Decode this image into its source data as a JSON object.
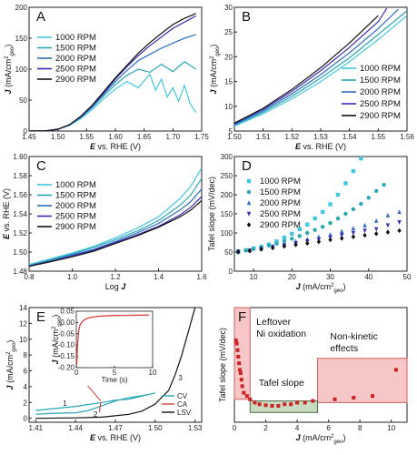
{
  "series_colors": [
    "#43c7e0",
    "#2aa6b4",
    "#2f6dc0",
    "#3b2fb3",
    "#111111"
  ],
  "chart_data": [
    {
      "id": "A",
      "type": "line",
      "panel_label": "A",
      "xlabel": "E vs. RHE (V)",
      "ylabel": "J (mA/cm2geo)",
      "xlim": [
        1.45,
        1.75
      ],
      "ylim": [
        0,
        200
      ],
      "xticks": [
        "1.45",
        "1.50",
        "1.55",
        "1.60",
        "1.65",
        "1.70",
        "1.75"
      ],
      "xtick_values": [
        1.45,
        1.5,
        1.55,
        1.6,
        1.65,
        1.7,
        1.75
      ],
      "yticks": [
        "0",
        "50",
        "100",
        "150",
        "200"
      ],
      "ytick_values": [
        0,
        50,
        100,
        150,
        200
      ],
      "legend_position": "top-left",
      "series": [
        {
          "name": "1000 RPM",
          "x": [
            1.45,
            1.48,
            1.5,
            1.52,
            1.54,
            1.56,
            1.58,
            1.6,
            1.62,
            1.64,
            1.66,
            1.67,
            1.68,
            1.69,
            1.7,
            1.71,
            1.72,
            1.73,
            1.74
          ],
          "y": [
            0,
            0.5,
            3,
            9,
            20,
            35,
            52,
            68,
            80,
            70,
            92,
            66,
            84,
            55,
            70,
            48,
            74,
            44,
            30
          ]
        },
        {
          "name": "1500 RPM",
          "x": [
            1.45,
            1.48,
            1.5,
            1.52,
            1.54,
            1.56,
            1.58,
            1.6,
            1.62,
            1.64,
            1.66,
            1.68,
            1.7,
            1.72,
            1.74
          ],
          "y": [
            0,
            0.5,
            3,
            10,
            22,
            38,
            57,
            75,
            90,
            100,
            95,
            108,
            96,
            112,
            100
          ]
        },
        {
          "name": "2000 RPM",
          "x": [
            1.45,
            1.48,
            1.5,
            1.52,
            1.54,
            1.56,
            1.58,
            1.6,
            1.62,
            1.64,
            1.66,
            1.68,
            1.7,
            1.72,
            1.74
          ],
          "y": [
            0,
            0.5,
            3,
            10,
            23,
            40,
            60,
            80,
            98,
            114,
            124,
            134,
            142,
            150,
            156
          ]
        },
        {
          "name": "2500 RPM",
          "x": [
            1.45,
            1.48,
            1.5,
            1.52,
            1.54,
            1.56,
            1.58,
            1.6,
            1.62,
            1.64,
            1.66,
            1.68,
            1.7,
            1.72,
            1.74
          ],
          "y": [
            0,
            0.5,
            3,
            10,
            23,
            41,
            62,
            84,
            104,
            122,
            138,
            152,
            166,
            176,
            186
          ]
        },
        {
          "name": "2900 RPM",
          "x": [
            1.45,
            1.48,
            1.5,
            1.52,
            1.54,
            1.56,
            1.58,
            1.6,
            1.62,
            1.64,
            1.66,
            1.68,
            1.7,
            1.72,
            1.74
          ],
          "y": [
            0,
            0.5,
            3,
            10,
            24,
            42,
            64,
            86,
            106,
            126,
            143,
            158,
            172,
            182,
            190
          ]
        }
      ]
    },
    {
      "id": "B",
      "type": "line",
      "panel_label": "B",
      "xlabel": "E vs. RHE (V)",
      "ylabel": "J (mA/cm2geo)",
      "xlim": [
        1.5,
        1.56
      ],
      "ylim": [
        5,
        30
      ],
      "xticks": [
        "1.50",
        "1.51",
        "1.52",
        "1.53",
        "1.54",
        "1.55",
        "1.56"
      ],
      "xtick_values": [
        1.5,
        1.51,
        1.52,
        1.53,
        1.54,
        1.55,
        1.56
      ],
      "yticks": [
        "5",
        "10",
        "15",
        "20",
        "25",
        "30"
      ],
      "ytick_values": [
        5,
        10,
        15,
        20,
        25,
        30
      ],
      "legend_position": "bottom-right",
      "series": [
        {
          "name": "1000 RPM",
          "x": [
            1.5,
            1.51,
            1.52,
            1.53,
            1.54,
            1.55,
            1.56
          ],
          "y": [
            6.0,
            8.5,
            11.5,
            15.0,
            19.0,
            23.5,
            28.3
          ]
        },
        {
          "name": "1500 RPM",
          "x": [
            1.5,
            1.51,
            1.52,
            1.53,
            1.54,
            1.55,
            1.56
          ],
          "y": [
            6.2,
            8.8,
            12.0,
            15.7,
            19.8,
            24.5,
            29.3
          ]
        },
        {
          "name": "2000 RPM",
          "x": [
            1.5,
            1.51,
            1.52,
            1.53,
            1.54,
            1.55,
            1.557
          ],
          "y": [
            6.3,
            9.1,
            12.5,
            16.4,
            20.8,
            25.7,
            29.6
          ]
        },
        {
          "name": "2500 RPM",
          "x": [
            1.5,
            1.51,
            1.52,
            1.53,
            1.54,
            1.55,
            1.553
          ],
          "y": [
            6.5,
            9.4,
            13.0,
            17.2,
            21.9,
            27.1,
            29.8
          ]
        },
        {
          "name": "2900 RPM",
          "x": [
            1.5,
            1.51,
            1.52,
            1.53,
            1.54,
            1.55
          ],
          "y": [
            6.6,
            9.6,
            13.4,
            17.8,
            22.8,
            28.3
          ]
        }
      ]
    },
    {
      "id": "C",
      "type": "line",
      "panel_label": "C",
      "xlabel": "Log J",
      "ylabel": "E vs. RHE (V)",
      "xlim": [
        0.8,
        1.6
      ],
      "ylim": [
        1.48,
        1.6
      ],
      "xticks": [
        "0.8",
        "1.0",
        "1.2",
        "1.4",
        "1.6"
      ],
      "xtick_values": [
        0.8,
        1.0,
        1.2,
        1.4,
        1.6
      ],
      "yticks": [
        "1.48",
        "1.50",
        "1.52",
        "1.54",
        "1.56",
        "1.58",
        "1.60"
      ],
      "ytick_values": [
        1.48,
        1.5,
        1.52,
        1.54,
        1.56,
        1.58,
        1.6
      ],
      "legend_position": "top-left",
      "series": [
        {
          "name": "1000 RPM",
          "x": [
            0.8,
            0.9,
            1.0,
            1.1,
            1.2,
            1.3,
            1.4,
            1.5,
            1.55,
            1.6
          ],
          "y": [
            1.487,
            1.493,
            1.499,
            1.506,
            1.515,
            1.525,
            1.537,
            1.556,
            1.569,
            1.588
          ]
        },
        {
          "name": "1500 RPM",
          "x": [
            0.8,
            0.9,
            1.0,
            1.1,
            1.2,
            1.3,
            1.4,
            1.5,
            1.55,
            1.6
          ],
          "y": [
            1.486,
            1.492,
            1.498,
            1.505,
            1.513,
            1.522,
            1.533,
            1.549,
            1.56,
            1.577
          ]
        },
        {
          "name": "2000 RPM",
          "x": [
            0.8,
            0.9,
            1.0,
            1.1,
            1.2,
            1.3,
            1.4,
            1.5,
            1.55,
            1.6
          ],
          "y": [
            1.486,
            1.491,
            1.497,
            1.503,
            1.511,
            1.52,
            1.53,
            1.544,
            1.553,
            1.566
          ]
        },
        {
          "name": "2500 RPM",
          "x": [
            0.8,
            0.9,
            1.0,
            1.1,
            1.2,
            1.3,
            1.4,
            1.5,
            1.55,
            1.6
          ],
          "y": [
            1.485,
            1.49,
            1.496,
            1.502,
            1.51,
            1.518,
            1.527,
            1.539,
            1.547,
            1.558
          ]
        },
        {
          "name": "2900 RPM",
          "x": [
            0.8,
            0.9,
            1.0,
            1.1,
            1.2,
            1.3,
            1.4,
            1.5,
            1.55,
            1.6
          ],
          "y": [
            1.485,
            1.49,
            1.495,
            1.501,
            1.509,
            1.517,
            1.526,
            1.537,
            1.544,
            1.554
          ]
        }
      ]
    },
    {
      "id": "D",
      "type": "scatter",
      "panel_label": "D",
      "xlabel": "J (mA/cm2geo)",
      "ylabel": "Tafel slope (mV/dec)",
      "xlim": [
        5,
        50
      ],
      "ylim": [
        0,
        300
      ],
      "xticks": [
        "10",
        "20",
        "30",
        "40",
        "50"
      ],
      "xtick_values": [
        10,
        20,
        30,
        40,
        50
      ],
      "yticks": [
        "0",
        "50",
        "100",
        "150",
        "200",
        "250",
        "300"
      ],
      "ytick_values": [
        0,
        50,
        100,
        150,
        200,
        250,
        300
      ],
      "legend_position": "top-left",
      "markers": [
        "square",
        "circle",
        "triangle-up",
        "triangle-down",
        "diamond"
      ],
      "series": [
        {
          "name": "1000 RPM",
          "x": [
            6,
            8,
            10,
            12,
            14,
            16,
            18,
            20,
            22,
            24,
            26,
            28,
            30,
            32,
            34,
            36,
            38
          ],
          "y": [
            52,
            55,
            60,
            64,
            70,
            78,
            88,
            98,
            110,
            122,
            138,
            155,
            175,
            200,
            230,
            262,
            295
          ]
        },
        {
          "name": "1500 RPM",
          "x": [
            6,
            8,
            10,
            12,
            14,
            16,
            18,
            20,
            22,
            24,
            26,
            28,
            30,
            32,
            34,
            36,
            38,
            40,
            42,
            44
          ],
          "y": [
            51,
            54,
            58,
            62,
            67,
            72,
            79,
            85,
            92,
            100,
            108,
            116,
            126,
            138,
            150,
            162,
            176,
            192,
            210,
            226
          ]
        },
        {
          "name": "2000 RPM",
          "x": [
            6,
            9,
            12,
            15,
            18,
            21,
            24,
            27,
            30,
            33,
            36,
            39,
            42,
            45,
            48
          ],
          "y": [
            51,
            55,
            60,
            66,
            72,
            78,
            84,
            90,
            96,
            104,
            112,
            120,
            132,
            146,
            155
          ]
        },
        {
          "name": "2500 RPM",
          "x": [
            6,
            9,
            12,
            15,
            18,
            21,
            24,
            27,
            30,
            33,
            36,
            39,
            42,
            45,
            48
          ],
          "y": [
            51,
            54,
            58,
            63,
            68,
            73,
            78,
            83,
            88,
            94,
            100,
            106,
            110,
            120,
            128
          ]
        },
        {
          "name": "2900 RPM",
          "x": [
            6,
            9,
            12,
            15,
            18,
            21,
            24,
            27,
            30,
            33,
            36,
            39,
            42,
            45,
            48
          ],
          "y": [
            50,
            53,
            57,
            61,
            65,
            69,
            73,
            77,
            82,
            86,
            90,
            94,
            98,
            102,
            106
          ]
        }
      ]
    },
    {
      "id": "E",
      "type": "line",
      "panel_label": "E",
      "xlabel": "E vs. RHE (V)",
      "ylabel": "J (mA/cm2geo)",
      "xlim": [
        1.405,
        1.535
      ],
      "ylim": [
        -0.5,
        14
      ],
      "xticks": [
        "1.41",
        "1.44",
        "1.47",
        "1.50",
        "1.53"
      ],
      "xtick_values": [
        1.41,
        1.44,
        1.47,
        1.5,
        1.53
      ],
      "yticks": [
        "0",
        "2",
        "4",
        "6",
        "8",
        "10",
        "12",
        "14"
      ],
      "ytick_values": [
        0,
        2,
        4,
        6,
        8,
        10,
        12,
        14
      ],
      "legend_position": "bottom-right",
      "annotations": [
        "1",
        "2",
        "3"
      ],
      "series": [
        {
          "name": "CV",
          "color": "#2aa6b4",
          "x": [
            1.41,
            1.44,
            1.46,
            1.47,
            1.48,
            1.49,
            1.5,
            1.495,
            1.48,
            1.47,
            1.46,
            1.45,
            1.44,
            1.42,
            1.41
          ],
          "y": [
            1.0,
            1.5,
            2.0,
            2.3,
            2.4,
            2.8,
            3.2,
            3.0,
            2.6,
            2.2,
            1.6,
            1.0,
            0.7,
            0.6,
            0.5
          ]
        },
        {
          "name": "CA",
          "color": "#d94040",
          "x": [
            1.458,
            1.4585,
            1.459
          ],
          "y": [
            0.8,
            1.5,
            2.0
          ]
        },
        {
          "name": "LSV",
          "color": "#111111",
          "x": [
            1.41,
            1.44,
            1.46,
            1.48,
            1.49,
            1.5,
            1.51,
            1.515,
            1.52,
            1.525,
            1.53
          ],
          "y": [
            0.0,
            0.05,
            0.15,
            0.5,
            0.9,
            1.8,
            3.5,
            5.5,
            8.0,
            11.0,
            14.0
          ]
        }
      ],
      "inset": {
        "xlabel": "Time (s)",
        "ylabel": "J (mA/cm2geo)",
        "xlim": [
          0,
          10
        ],
        "ylim": [
          -0.2,
          0.05
        ],
        "xticks": [
          "0",
          "5",
          "10"
        ],
        "xtick_values": [
          0,
          5,
          10
        ],
        "yticks": [
          "-0.20",
          "-0.15",
          "-0.10",
          "-0.05",
          "0.00",
          "0.05"
        ],
        "ytick_values": [
          -0.2,
          -0.15,
          -0.1,
          -0.05,
          0.0,
          0.05
        ],
        "x": [
          0.05,
          0.15,
          0.3,
          0.5,
          0.8,
          1.2,
          1.8,
          2.5,
          3.5,
          5,
          7,
          9.5
        ],
        "y": [
          -0.19,
          -0.1,
          -0.04,
          -0.01,
          0.005,
          0.015,
          0.022,
          0.026,
          0.029,
          0.031,
          0.032,
          0.033
        ]
      }
    },
    {
      "id": "F",
      "type": "scatter",
      "panel_label": "F",
      "xlabel": "J (mA/cm2geo)",
      "ylabel": "Tafel slope (mV/dec)",
      "xlim": [
        0,
        11
      ],
      "ylim": [
        25,
        60
      ],
      "xticks": [
        "0",
        "2",
        "4",
        "6",
        "8",
        "10"
      ],
      "xtick_values": [
        0,
        2,
        4,
        6,
        8,
        10
      ],
      "yticks": [],
      "ytick_values": [],
      "annotations": [
        "Leftover",
        "Ni oxidation",
        "Non-kinetic",
        "effects",
        "Tafel slope"
      ],
      "series": [
        {
          "name": "",
          "color": "#cc2222",
          "x": [
            0.1,
            0.15,
            0.2,
            0.25,
            0.3,
            0.35,
            0.4,
            0.45,
            0.5,
            0.6,
            0.8,
            1.0,
            1.3,
            1.6,
            2.0,
            2.4,
            2.8,
            3.2,
            3.6,
            4.0,
            4.5,
            5.0,
            6.4,
            7.6,
            8.8,
            10.3
          ],
          "y": [
            50,
            49,
            47,
            45,
            43,
            41,
            40,
            38,
            36,
            34,
            33,
            32,
            31,
            30.5,
            30.2,
            30,
            30,
            30.5,
            30.5,
            31,
            31,
            31.5,
            32,
            32.5,
            33,
            41
          ]
        }
      ]
    }
  ]
}
